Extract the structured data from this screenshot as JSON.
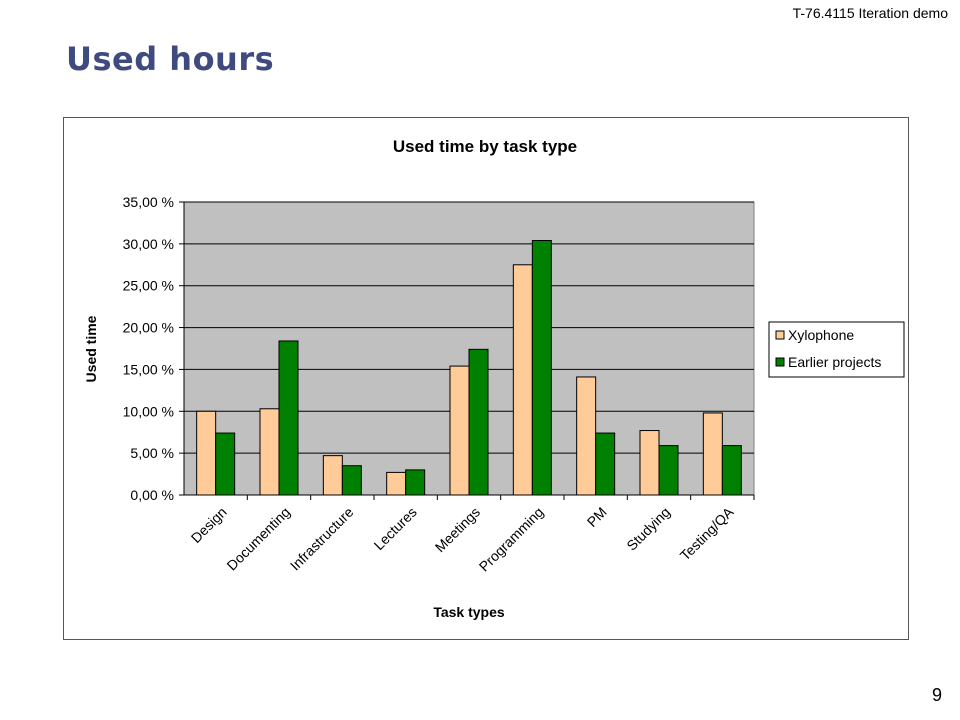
{
  "header": {
    "course": "T-76.4115 Iteration demo"
  },
  "slide": {
    "title": "Used hours",
    "page_number": "9"
  },
  "colors": {
    "xylophone": "#ffcc99",
    "earlier": "#008000",
    "plot_bg": "#c0c0c0",
    "title_color": "#3f4b7e"
  },
  "chart_data": {
    "type": "bar",
    "title": "Used time by task type",
    "xlabel": "Task types",
    "ylabel": "Used time",
    "ylim": [
      0,
      35
    ],
    "y_ticks": [
      0,
      5,
      10,
      15,
      20,
      25,
      30,
      35
    ],
    "y_tick_labels": [
      "0,00 %",
      "5,00 %",
      "10,00 %",
      "15,00 %",
      "20,00 %",
      "25,00 %",
      "30,00 %",
      "35,00 %"
    ],
    "grid": true,
    "legend_position": "right",
    "categories": [
      "Design",
      "Documenting",
      "Infrastructure",
      "Lectures",
      "Meetings",
      "Programming",
      "PM",
      "Studying",
      "Testing/QA"
    ],
    "series": [
      {
        "name": "Xylophone",
        "values": [
          10.0,
          10.3,
          4.7,
          2.7,
          15.4,
          27.5,
          14.1,
          7.7,
          9.8
        ]
      },
      {
        "name": "Earlier projects",
        "values": [
          7.4,
          18.4,
          3.5,
          3.0,
          17.4,
          30.4,
          7.4,
          5.9,
          5.9
        ]
      }
    ]
  }
}
